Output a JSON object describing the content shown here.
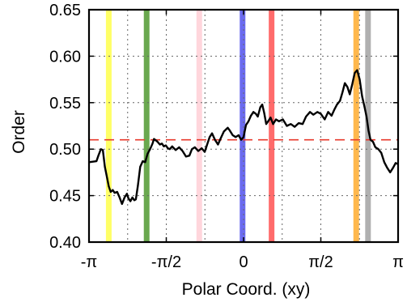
{
  "chart_data": {
    "type": "line",
    "title": "",
    "xlabel": "Polar Coord. (xy)",
    "ylabel": "Order",
    "xlim": [
      -3.1416,
      3.1416
    ],
    "ylim": [
      0.4,
      0.65
    ],
    "grid": true,
    "x_ticks": [
      {
        "value": -3.1416,
        "label": "-π"
      },
      {
        "value": -1.5708,
        "label": "-π/2"
      },
      {
        "value": 0,
        "label": "0"
      },
      {
        "value": 1.5708,
        "label": "π/2"
      },
      {
        "value": 3.1416,
        "label": "π"
      }
    ],
    "x_minor_grid": [
      -2.3562,
      -0.7854,
      0.7854,
      2.3562
    ],
    "y_ticks": [
      {
        "value": 0.4,
        "label": "0.40"
      },
      {
        "value": 0.45,
        "label": "0.45"
      },
      {
        "value": 0.5,
        "label": "0.50"
      },
      {
        "value": 0.55,
        "label": "0.55"
      },
      {
        "value": 0.6,
        "label": "0.60"
      },
      {
        "value": 0.65,
        "label": "0.65"
      }
    ],
    "reference_line": {
      "y": 0.51,
      "color": "#e8392b",
      "style": "dashed"
    },
    "highlight_bands": [
      {
        "x": -2.74,
        "color": "#ffff66"
      },
      {
        "x": -1.97,
        "color": "#6aa84f"
      },
      {
        "x": -0.9,
        "color": "#ffd6dc"
      },
      {
        "x": -0.02,
        "color": "#6b6bf0"
      },
      {
        "x": 0.57,
        "color": "#ff6b6b"
      },
      {
        "x": 2.29,
        "color": "#ffb84d"
      },
      {
        "x": 2.53,
        "color": "#b0b0b0"
      }
    ],
    "series": [
      {
        "color": "#000000",
        "x": [
          -3.14,
          -2.99,
          -2.95,
          -2.9,
          -2.86,
          -2.82,
          -2.77,
          -2.74,
          -2.7,
          -2.66,
          -2.62,
          -2.57,
          -2.52,
          -2.47,
          -2.42,
          -2.37,
          -2.34,
          -2.3,
          -2.26,
          -2.22,
          -2.19,
          -2.15,
          -2.1,
          -2.05,
          -2.0,
          -1.95,
          -1.9,
          -1.85,
          -1.82,
          -1.75,
          -1.7,
          -1.66,
          -1.62,
          -1.58,
          -1.54,
          -1.5,
          -1.45,
          -1.38,
          -1.31,
          -1.24,
          -1.17,
          -1.1,
          -1.05,
          -0.99,
          -0.92,
          -0.85,
          -0.79,
          -0.74,
          -0.69,
          -0.64,
          -0.58,
          -0.52,
          -0.47,
          -0.4,
          -0.32,
          -0.28,
          -0.22,
          -0.16,
          -0.1,
          -0.05,
          0.0,
          0.05,
          0.1,
          0.15,
          0.2,
          0.25,
          0.29,
          0.34,
          0.38,
          0.42,
          0.46,
          0.5,
          0.55,
          0.6,
          0.66,
          0.72,
          0.8,
          0.88,
          0.96,
          1.04,
          1.12,
          1.2,
          1.27,
          1.35,
          1.42,
          1.5,
          1.57,
          1.65,
          1.72,
          1.79,
          1.85,
          1.9,
          1.96,
          2.01,
          2.06,
          2.11,
          2.16,
          2.21,
          2.26,
          2.31,
          2.36,
          2.41,
          2.46,
          2.5,
          2.54,
          2.58,
          2.63,
          2.68,
          2.74,
          2.8,
          2.86,
          2.92,
          2.98,
          3.04,
          3.09,
          3.14
        ],
        "y": [
          0.486,
          0.487,
          0.493,
          0.5,
          0.499,
          0.481,
          0.468,
          0.46,
          0.454,
          0.456,
          0.453,
          0.454,
          0.448,
          0.441,
          0.448,
          0.452,
          0.447,
          0.444,
          0.448,
          0.445,
          0.446,
          0.46,
          0.481,
          0.487,
          0.486,
          0.495,
          0.5,
          0.506,
          0.511,
          0.508,
          0.505,
          0.506,
          0.503,
          0.504,
          0.501,
          0.5,
          0.503,
          0.499,
          0.502,
          0.498,
          0.492,
          0.493,
          0.5,
          0.502,
          0.498,
          0.501,
          0.497,
          0.505,
          0.513,
          0.517,
          0.51,
          0.505,
          0.511,
          0.519,
          0.523,
          0.52,
          0.515,
          0.513,
          0.515,
          0.51,
          0.513,
          0.526,
          0.53,
          0.536,
          0.54,
          0.538,
          0.535,
          0.545,
          0.548,
          0.539,
          0.527,
          0.53,
          0.534,
          0.527,
          0.532,
          0.53,
          0.532,
          0.525,
          0.527,
          0.524,
          0.528,
          0.527,
          0.535,
          0.54,
          0.537,
          0.54,
          0.538,
          0.532,
          0.54,
          0.536,
          0.543,
          0.548,
          0.552,
          0.561,
          0.571,
          0.567,
          0.559,
          0.57,
          0.582,
          0.585,
          0.575,
          0.557,
          0.545,
          0.535,
          0.52,
          0.51,
          0.508,
          0.502,
          0.5,
          0.496,
          0.486,
          0.48,
          0.475,
          0.48,
          0.485,
          0.484
        ]
      }
    ]
  }
}
